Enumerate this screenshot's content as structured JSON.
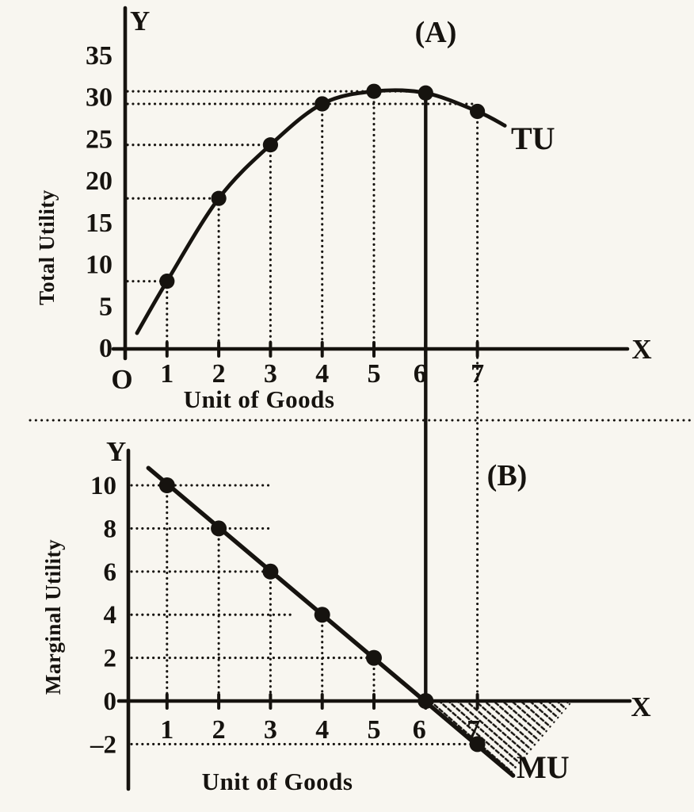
{
  "page": {
    "background": "#f8f6f0",
    "ink": "#16130f"
  },
  "chart_data": [
    {
      "type": "line",
      "panel_label": "(A)",
      "series_name": "TU",
      "y_axis_letter": "Y",
      "x_axis_letter": "X",
      "origin_label": "O",
      "ylabel": "Total Utility",
      "xlabel": "Unit of Goods",
      "x": [
        1,
        2,
        3,
        4,
        5,
        6,
        7
      ],
      "values": [
        10,
        18,
        24,
        28,
        30,
        30,
        28
      ],
      "plotted_values": [
        7.9,
        17.8,
        24.2,
        29.1,
        30.6,
        30.4,
        28.2
      ],
      "curve_extension": {
        "start": {
          "x": 0.42,
          "y": 1.7
        },
        "end": {
          "x": 7.53,
          "y": 26.5
        }
      },
      "yticks": [
        35,
        30,
        25,
        20,
        15,
        10,
        5,
        0
      ],
      "xticks": [
        1,
        2,
        3,
        4,
        5,
        6,
        7
      ],
      "ylim": [
        0,
        37
      ],
      "xlim": [
        0,
        9.9
      ],
      "grid": "dotted guide lines from axes to each data point",
      "legend_position": "none",
      "saturation_line_x": 6
    },
    {
      "type": "line",
      "panel_label": "(B)",
      "series_name": "MU",
      "y_axis_letter": "Y",
      "x_axis_letter": "X",
      "ylabel": "Marginal Utility",
      "xlabel": "Unit of Goods",
      "x": [
        1,
        2,
        3,
        4,
        5,
        6,
        7
      ],
      "values": [
        10,
        8,
        6,
        4,
        2,
        0,
        -2
      ],
      "line_extension": {
        "start": {
          "x": 0.64,
          "y": 10.8
        },
        "end": {
          "x": 7.69,
          "y": -3.46
        }
      },
      "yticks": [
        10,
        8,
        6,
        4,
        2,
        0,
        -2
      ],
      "ytick_labels": [
        "10",
        "8",
        "6",
        "4",
        "2",
        "0",
        "–2"
      ],
      "xticks": [
        1,
        2,
        3,
        4,
        5,
        6,
        7
      ],
      "ylim": [
        -3.6,
        11.5
      ],
      "xlim": [
        0,
        9.9
      ],
      "grid": "dotted guide lines from axes to each data point",
      "legend_position": "none",
      "shaded_region": {
        "meaning": "negative marginal utility (disutility) area",
        "vertices_data_coords": [
          [
            6,
            0
          ],
          [
            8.85,
            0
          ],
          [
            7.66,
            -3.35
          ]
        ]
      }
    }
  ]
}
